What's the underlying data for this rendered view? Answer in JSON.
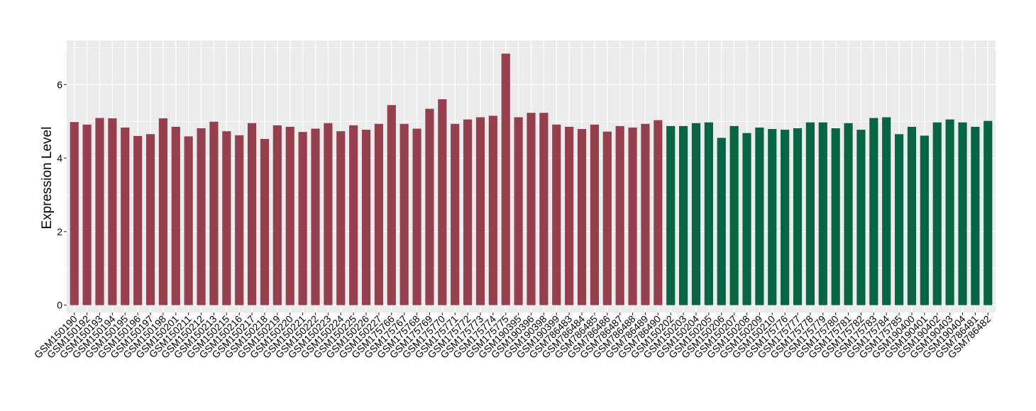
{
  "chart_data": {
    "type": "bar",
    "title": "",
    "xlabel": "",
    "ylabel": "Expression Level",
    "ylim": [
      -0.2,
      7.2
    ],
    "yticks": [
      0,
      2,
      4,
      6
    ],
    "grid": true,
    "colors": {
      "panel_background": "#ebebeb",
      "grid_major": "#ffffff",
      "group_1": "#96404f",
      "group_2": "#076641"
    },
    "categories": [
      "GSM150190",
      "GSM150192",
      "GSM150193",
      "GSM150194",
      "GSM150195",
      "GSM150196",
      "GSM150197",
      "GSM150198",
      "GSM150201",
      "GSM150211",
      "GSM150212",
      "GSM150213",
      "GSM150215",
      "GSM150216",
      "GSM150217",
      "GSM150218",
      "GSM150219",
      "GSM150220",
      "GSM150221",
      "GSM150222",
      "GSM150223",
      "GSM150224",
      "GSM150225",
      "GSM150226",
      "GSM150227",
      "GSM175766",
      "GSM175767",
      "GSM175768",
      "GSM175769",
      "GSM175770",
      "GSM175771",
      "GSM175772",
      "GSM175773",
      "GSM175774",
      "GSM175775",
      "GSM190395",
      "GSM190396",
      "GSM190398",
      "GSM190399",
      "GSM786483",
      "GSM786484",
      "GSM786485",
      "GSM786486",
      "GSM786487",
      "GSM786488",
      "GSM786489",
      "GSM786490",
      "GSM150202",
      "GSM150203",
      "GSM150204",
      "GSM150205",
      "GSM150206",
      "GSM150207",
      "GSM150208",
      "GSM150209",
      "GSM150210",
      "GSM175776",
      "GSM175777",
      "GSM175778",
      "GSM175779",
      "GSM175780",
      "GSM175781",
      "GSM175782",
      "GSM175783",
      "GSM175784",
      "GSM175785",
      "GSM190400",
      "GSM190401",
      "GSM190402",
      "GSM190403",
      "GSM190404",
      "GSM786481",
      "GSM786482"
    ],
    "values": [
      4.98,
      4.91,
      5.09,
      5.08,
      4.83,
      4.6,
      4.65,
      5.08,
      4.85,
      4.59,
      4.81,
      4.99,
      4.73,
      4.62,
      4.95,
      4.52,
      4.89,
      4.85,
      4.71,
      4.8,
      4.95,
      4.73,
      4.89,
      4.77,
      4.93,
      5.44,
      4.93,
      4.8,
      5.34,
      5.6,
      4.93,
      5.05,
      5.11,
      5.15,
      6.84,
      5.11,
      5.23,
      5.23,
      4.91,
      4.85,
      4.79,
      4.91,
      4.72,
      4.87,
      4.83,
      4.93,
      5.03,
      4.87,
      4.87,
      4.95,
      4.97,
      4.55,
      4.87,
      4.68,
      4.83,
      4.79,
      4.77,
      4.81,
      4.97,
      4.97,
      4.81,
      4.95,
      4.77,
      5.09,
      5.11,
      4.65,
      4.85,
      4.61,
      4.97,
      5.05,
      4.97,
      4.85,
      5.01
    ],
    "groups": [
      1,
      1,
      1,
      1,
      1,
      1,
      1,
      1,
      1,
      1,
      1,
      1,
      1,
      1,
      1,
      1,
      1,
      1,
      1,
      1,
      1,
      1,
      1,
      1,
      1,
      1,
      1,
      1,
      1,
      1,
      1,
      1,
      1,
      1,
      1,
      1,
      1,
      1,
      1,
      1,
      1,
      1,
      1,
      1,
      1,
      1,
      1,
      2,
      2,
      2,
      2,
      2,
      2,
      2,
      2,
      2,
      2,
      2,
      2,
      2,
      2,
      2,
      2,
      2,
      2,
      2,
      2,
      2,
      2,
      2,
      2,
      2,
      2
    ]
  }
}
